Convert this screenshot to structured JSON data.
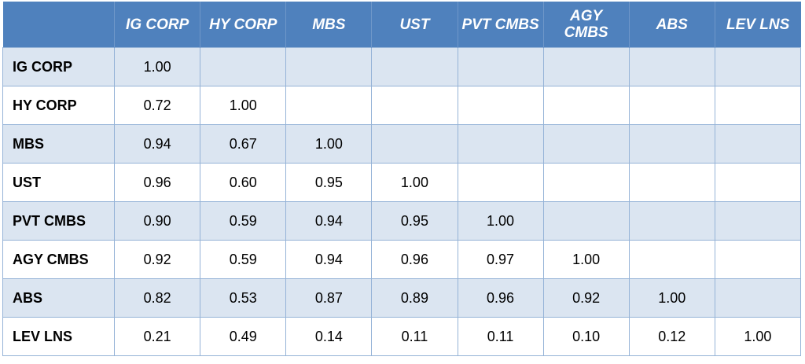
{
  "columns": [
    "",
    "IG CORP",
    "HY CORP",
    "MBS",
    "UST",
    "PVT CMBS",
    "AGY CMBS",
    "ABS",
    "LEV LNS"
  ],
  "rows": [
    {
      "label": "IG CORP",
      "values": [
        "1.00",
        "",
        "",
        "",
        "",
        "",
        "",
        ""
      ]
    },
    {
      "label": "HY CORP",
      "values": [
        "0.72",
        "1.00",
        "",
        "",
        "",
        "",
        "",
        ""
      ]
    },
    {
      "label": "MBS",
      "values": [
        "0.94",
        "0.67",
        "1.00",
        "",
        "",
        "",
        "",
        ""
      ]
    },
    {
      "label": "UST",
      "values": [
        "0.96",
        "0.60",
        "0.95",
        "1.00",
        "",
        "",
        "",
        ""
      ]
    },
    {
      "label": "PVT CMBS",
      "values": [
        "0.90",
        "0.59",
        "0.94",
        "0.95",
        "1.00",
        "",
        "",
        ""
      ]
    },
    {
      "label": "AGY CMBS",
      "values": [
        "0.92",
        "0.59",
        "0.94",
        "0.96",
        "0.97",
        "1.00",
        "",
        ""
      ]
    },
    {
      "label": "ABS",
      "values": [
        "0.82",
        "0.53",
        "0.87",
        "0.89",
        "0.96",
        "0.92",
        "1.00",
        ""
      ]
    },
    {
      "label": "LEV LNS",
      "values": [
        "0.21",
        "0.49",
        "0.14",
        "0.11",
        "0.11",
        "0.10",
        "0.12",
        "1.00"
      ]
    }
  ],
  "colors": {
    "header": "#4f81bd",
    "band": "#dbe5f1",
    "border": "#95b3d7"
  }
}
